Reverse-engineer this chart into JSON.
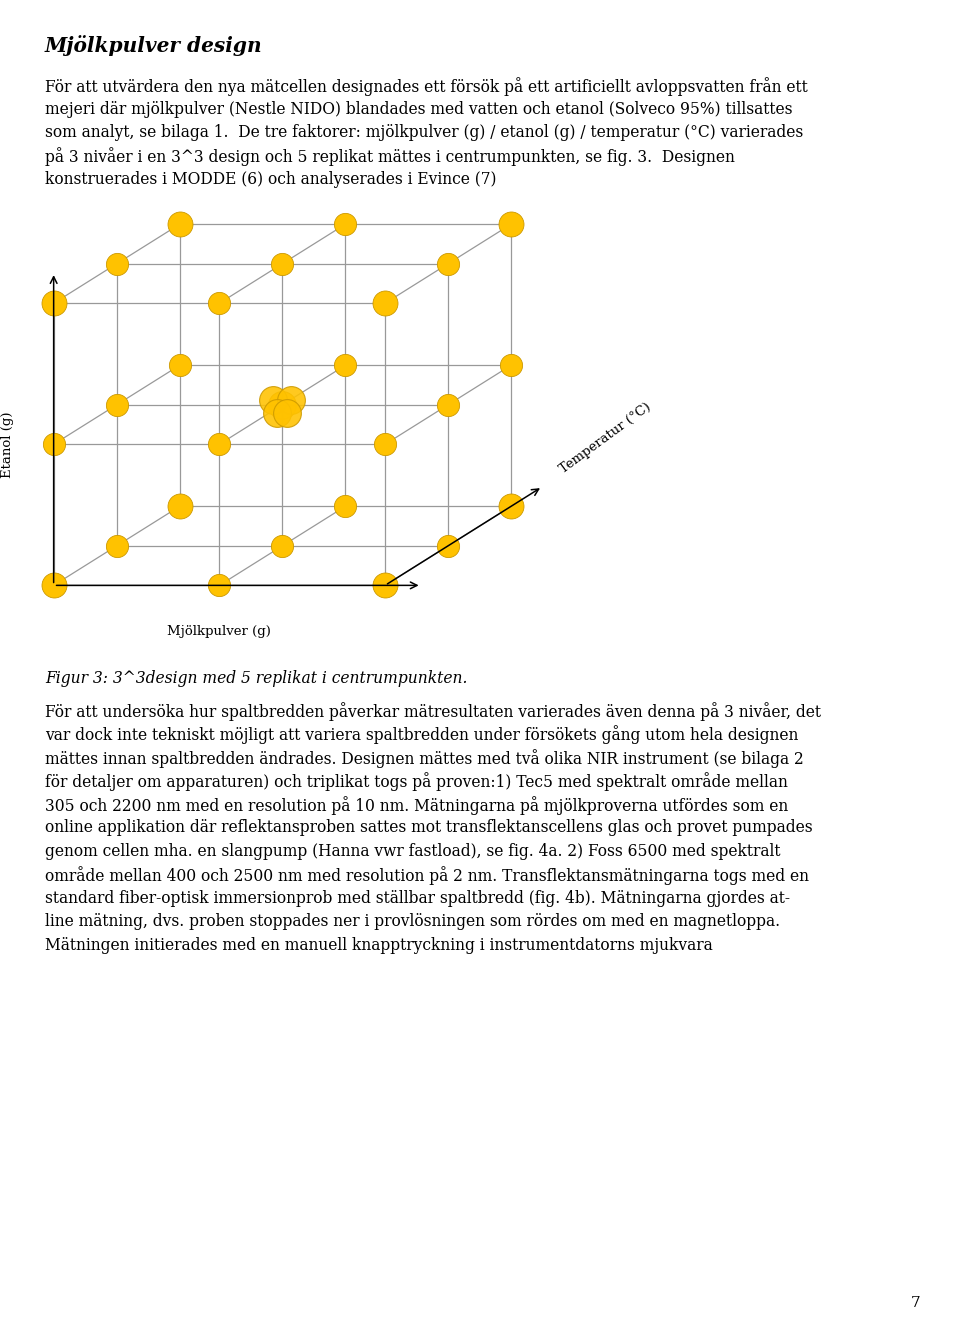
{
  "title": "Mjölkpulver design",
  "dot_color": "#FFC200",
  "dot_edge_color": "#CC9900",
  "line_color": "#999999",
  "bg_color": "#FFFFFF",
  "page_number": "7",
  "x_label": "Mjölkpulver (g)",
  "y_label": "Etanol (g)",
  "z_label": "Temperatur (°C)",
  "caption": "Figur 3: 3^3design med 5 replikat i centrumpunkten.",
  "para1_lines": [
    "För att utvärdera den nya mätcellen designades ett försök på ett artificiellt avloppsvatten från ett",
    "mejeri där mjölkpulver (Nestle NIDO) blandades med vatten och etanol (Solveco 95%) tillsattes",
    "som analyt, se bilaga 1.  De tre faktorer: mjölkpulver (g) / etanol (g) / temperatur (°C) varierades",
    "på 3 nivåer i en 3^3 design och 5 replikat mättes i centrumpunkten, se fig. 3.  Designen",
    "konstruerades i MODDE (6) och analyserades i Evince (7)"
  ],
  "para2_lines": [
    "För att undersöka hur spaltbredden påverkar mätresultaten varierades även denna på 3 nivåer, det",
    "var dock inte tekniskt möjligt att variera spaltbredden under försökets gång utom hela designen",
    "mättes innan spaltbredden ändrades. Designen mättes med två olika NIR instrument (se bilaga 2",
    "för detaljer om apparaturen) och triplikat togs på proven:1) Tec5 med spektralt område mellan",
    "305 och 2200 nm med en resolution på 10 nm. Mätningarna på mjölkproverna utfördes som en",
    "online applikation där reflektansproben sattes mot transflektanscellens glas och provet pumpades",
    "genom cellen mha. en slangpump (Hanna vwr fastload), se fig. 4a. 2) Foss 6500 med spektralt",
    "område mellan 400 och 2500 nm med resolution på 2 nm. Transflektansmätningarna togs med en",
    "standard fiber-optisk immersionprob med ställbar spaltbredd (fig. 4b). Mätningarna gjordes at-",
    "line mätning, dvs. proben stoppades ner i provlösningen som rördes om med en magnetloppa.",
    "Mätningen initierades med en manuell knapptryckning i instrumentdatorns mjukvara"
  ]
}
